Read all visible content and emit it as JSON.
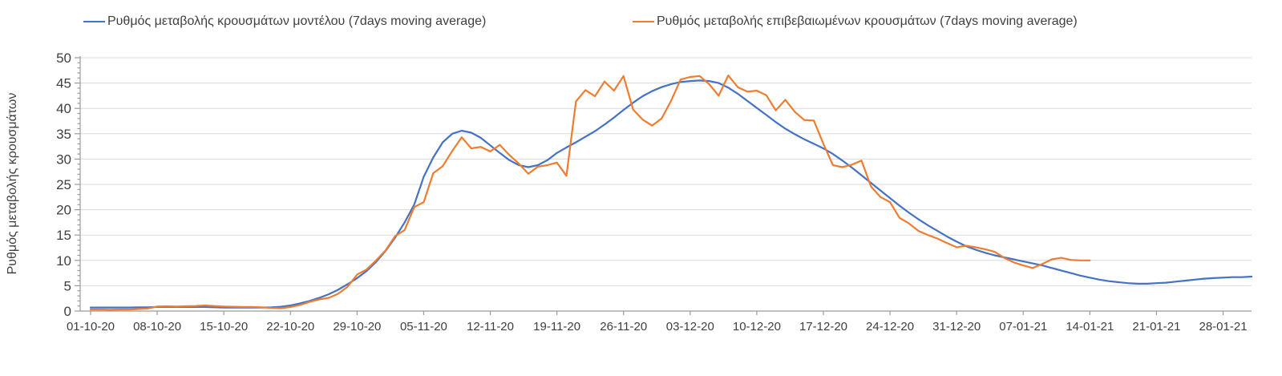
{
  "legend": {
    "items": [
      {
        "label": "Ρυθμός μεταβολής κρουσμάτων μοντέλου (7days moving average)",
        "color": "#4472C4"
      },
      {
        "label": "Ρυθμός μεταβολής επιβεβαιωμένων κρουσμάτων (7days moving average)",
        "color": "#ED7D31"
      }
    ]
  },
  "chart_data": {
    "type": "line",
    "title": "",
    "xlabel": "",
    "ylabel": "Ρυθμός μεταβολής κρουσμάτων",
    "ylim": [
      0,
      50
    ],
    "y_tick_step": 5,
    "y_minor_tick_step": 1,
    "grid": "horizontal-only",
    "legend_position": "top",
    "x_unit": "days",
    "x_start_date": "01-10-20",
    "x_tick_labels": [
      "01-10-20",
      "08-10-20",
      "15-10-20",
      "22-10-20",
      "29-10-20",
      "05-11-20",
      "12-11-20",
      "19-11-20",
      "26-11-20",
      "03-12-20",
      "10-12-20",
      "17-12-20",
      "24-12-20",
      "31-12-20",
      "07-01-21",
      "14-01-21",
      "21-01-21",
      "28-01-21"
    ],
    "x_tick_day_indices": [
      0,
      7,
      14,
      21,
      28,
      35,
      42,
      49,
      56,
      63,
      70,
      77,
      84,
      91,
      98,
      105,
      112,
      119
    ],
    "series": [
      {
        "name": "Ρυθμός μεταβολής κρουσμάτων μοντέλου (7days moving average)",
        "color": "#4472C4",
        "values": [
          0.7,
          0.7,
          0.7,
          0.7,
          0.7,
          0.75,
          0.75,
          0.8,
          0.8,
          0.8,
          0.8,
          0.8,
          0.8,
          0.75,
          0.7,
          0.7,
          0.7,
          0.7,
          0.7,
          0.75,
          0.85,
          1.1,
          1.5,
          2.0,
          2.6,
          3.3,
          4.2,
          5.3,
          6.5,
          7.9,
          9.7,
          11.9,
          14.5,
          17.5,
          21.0,
          26.5,
          30.3,
          33.3,
          35.0,
          35.6,
          35.2,
          34.2,
          32.7,
          31.2,
          29.8,
          28.8,
          28.4,
          28.8,
          29.8,
          31.2,
          32.3,
          33.3,
          34.4,
          35.5,
          36.8,
          38.2,
          39.7,
          41.1,
          42.4,
          43.4,
          44.2,
          44.8,
          45.2,
          45.4,
          45.5,
          45.4,
          45.0,
          44.1,
          42.9,
          41.5,
          40.1,
          38.7,
          37.3,
          36.0,
          34.9,
          33.9,
          33.0,
          32.1,
          31.0,
          29.7,
          28.3,
          26.8,
          25.3,
          23.8,
          22.3,
          20.8,
          19.4,
          18.1,
          16.9,
          15.8,
          14.7,
          13.7,
          12.8,
          12.1,
          11.5,
          11.0,
          10.6,
          10.2,
          9.8,
          9.4,
          9.0,
          8.5,
          8.0,
          7.5,
          7.0,
          6.6,
          6.2,
          5.9,
          5.7,
          5.5,
          5.4,
          5.4,
          5.5,
          5.6,
          5.8,
          6.0,
          6.2,
          6.4,
          6.5,
          6.6,
          6.7,
          6.7,
          6.8
        ]
      },
      {
        "name": "Ρυθμός μεταβολής επιβεβαιωμένων κρουσμάτων (7days moving average)",
        "color": "#ED7D31",
        "values": [
          0.3,
          0.3,
          0.25,
          0.3,
          0.3,
          0.4,
          0.5,
          0.9,
          0.95,
          0.9,
          0.95,
          1.0,
          1.1,
          1.0,
          0.9,
          0.85,
          0.8,
          0.8,
          0.75,
          0.6,
          0.55,
          0.8,
          1.2,
          1.8,
          2.3,
          2.6,
          3.4,
          4.8,
          7.2,
          8.2,
          10.0,
          12.0,
          14.8,
          16.0,
          20.5,
          21.5,
          27.2,
          28.6,
          31.6,
          34.3,
          32.1,
          32.4,
          31.5,
          32.8,
          30.8,
          29.1,
          27.1,
          28.5,
          28.8,
          29.3,
          26.7,
          41.4,
          43.6,
          42.4,
          45.3,
          43.5,
          46.4,
          39.8,
          37.8,
          36.6,
          38.0,
          41.5,
          45.7,
          46.2,
          46.4,
          44.8,
          42.5,
          46.5,
          44.2,
          43.3,
          43.5,
          42.6,
          39.6,
          41.7,
          39.3,
          37.7,
          37.6,
          33.0,
          28.8,
          28.4,
          28.9,
          29.7,
          24.6,
          22.5,
          21.5,
          18.4,
          17.3,
          15.8,
          15.0,
          14.3,
          13.4,
          12.6,
          12.9,
          12.6,
          12.2,
          11.7,
          10.5,
          9.6,
          9.0,
          8.5,
          9.3,
          10.2,
          10.5,
          10.1,
          10.0,
          10.0,
          null,
          null,
          null,
          null,
          null,
          null,
          null,
          null,
          null,
          null,
          null,
          null,
          null,
          null,
          null,
          null,
          null
        ]
      }
    ],
    "colors": {
      "gridline": "#D9D9D9",
      "axis": "#9b9b9b",
      "tick": "#9b9b9b",
      "text": "#3f3f3f"
    }
  }
}
